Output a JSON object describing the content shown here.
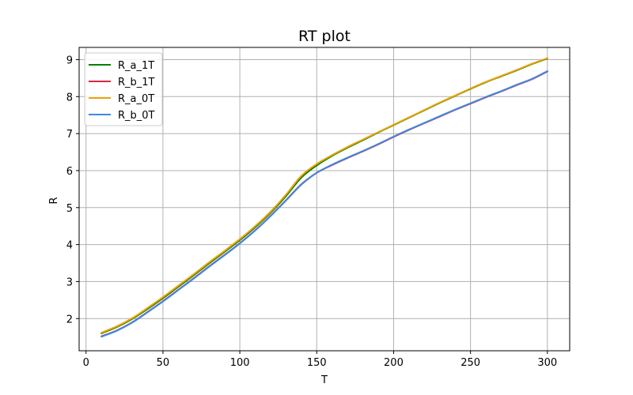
{
  "chart_data": {
    "type": "line",
    "title": "RT plot",
    "xlabel": "T",
    "ylabel": "R",
    "xlim": [
      -4.5,
      314.5
    ],
    "ylim": [
      1.13,
      9.33
    ],
    "xticks": [
      0,
      50,
      100,
      150,
      200,
      250,
      300
    ],
    "yticks": [
      2,
      3,
      4,
      5,
      6,
      7,
      8,
      9
    ],
    "grid": true,
    "legend_position": "upper-left",
    "series": [
      {
        "name": "R_a_1T",
        "color": "#008000",
        "x": [
          10,
          20,
          30,
          40,
          50,
          60,
          70,
          80,
          90,
          100,
          110,
          120,
          130,
          140,
          150,
          160,
          170,
          180,
          190,
          200,
          210,
          220,
          230,
          240,
          250,
          260,
          270,
          280,
          290,
          300
        ],
        "y": [
          1.6,
          1.77,
          1.99,
          2.26,
          2.55,
          2.86,
          3.17,
          3.49,
          3.8,
          4.12,
          4.47,
          4.86,
          5.31,
          5.81,
          6.14,
          6.4,
          6.62,
          6.82,
          7.03,
          7.23,
          7.43,
          7.63,
          7.83,
          8.02,
          8.21,
          8.39,
          8.55,
          8.71,
          8.88,
          9.03
        ]
      },
      {
        "name": "R_b_1T",
        "color": "#d6283f",
        "x": [
          10,
          20,
          30,
          40,
          50,
          60,
          70,
          80,
          90,
          100,
          110,
          120,
          130,
          140,
          150,
          160,
          170,
          180,
          190,
          200,
          210,
          220,
          230,
          240,
          250,
          260,
          270,
          280,
          290,
          300
        ],
        "y": [
          1.52,
          1.68,
          1.9,
          2.18,
          2.47,
          2.78,
          3.09,
          3.41,
          3.72,
          4.04,
          4.39,
          4.78,
          5.2,
          5.63,
          5.94,
          6.15,
          6.34,
          6.52,
          6.71,
          6.91,
          7.1,
          7.28,
          7.46,
          7.64,
          7.81,
          7.98,
          8.14,
          8.31,
          8.47,
          8.68
        ]
      },
      {
        "name": "R_a_0T",
        "color": "#f0a202",
        "x": [
          10,
          20,
          30,
          40,
          50,
          60,
          70,
          80,
          90,
          100,
          110,
          120,
          130,
          140,
          150,
          160,
          170,
          180,
          190,
          200,
          210,
          220,
          230,
          240,
          250,
          260,
          270,
          280,
          290,
          300
        ],
        "y": [
          1.62,
          1.79,
          2.01,
          2.29,
          2.58,
          2.89,
          3.2,
          3.52,
          3.83,
          4.15,
          4.5,
          4.89,
          5.35,
          5.86,
          6.18,
          6.42,
          6.64,
          6.84,
          7.04,
          7.24,
          7.44,
          7.64,
          7.84,
          8.03,
          8.22,
          8.4,
          8.56,
          8.72,
          8.89,
          9.04
        ]
      },
      {
        "name": "R_b_0T",
        "color": "#3f88e0",
        "x": [
          10,
          20,
          30,
          40,
          50,
          60,
          70,
          80,
          90,
          100,
          110,
          120,
          130,
          140,
          150,
          160,
          170,
          180,
          190,
          200,
          210,
          220,
          230,
          240,
          250,
          260,
          270,
          280,
          290,
          300
        ],
        "y": [
          1.51,
          1.67,
          1.89,
          2.17,
          2.46,
          2.77,
          3.08,
          3.4,
          3.71,
          4.03,
          4.38,
          4.77,
          5.19,
          5.62,
          5.94,
          6.16,
          6.35,
          6.53,
          6.72,
          6.92,
          7.11,
          7.29,
          7.47,
          7.65,
          7.82,
          7.99,
          8.15,
          8.32,
          8.48,
          8.69
        ]
      }
    ]
  }
}
